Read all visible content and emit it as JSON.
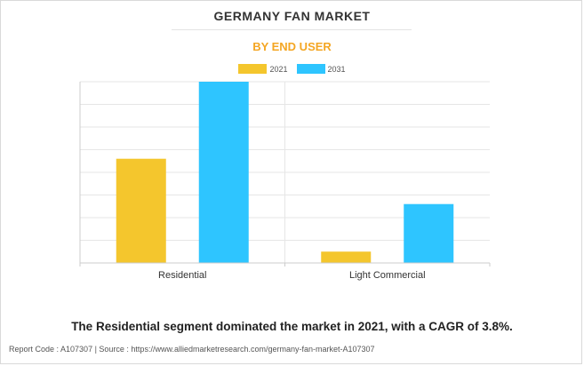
{
  "header": {
    "title": "GERMANY FAN MARKET",
    "subtitle": "BY END USER"
  },
  "colors": {
    "series_2021": "#f4c62d",
    "series_2031": "#2ec5ff",
    "subtitle": "#f4a623"
  },
  "chart_data": {
    "type": "bar",
    "title": "GERMANY FAN MARKET",
    "subtitle": "BY END USER",
    "categories": [
      "Residential",
      "Light Commercial"
    ],
    "series": [
      {
        "name": "2021",
        "values": [
          4.6,
          0.5
        ]
      },
      {
        "name": "2031",
        "values": [
          8.0,
          2.6
        ]
      }
    ],
    "ylim": [
      0,
      8
    ],
    "ylabel": "",
    "xlabel": "",
    "grid": true,
    "y_tick_labels_visible": false,
    "legend_position": "top-center"
  },
  "caption": "The Residential segment dominated the market in 2021, with a CAGR of 3.8%.",
  "footer": "Report Code : A107307  |  Source : https://www.alliedmarketresearch.com/germany-fan-market-A107307"
}
